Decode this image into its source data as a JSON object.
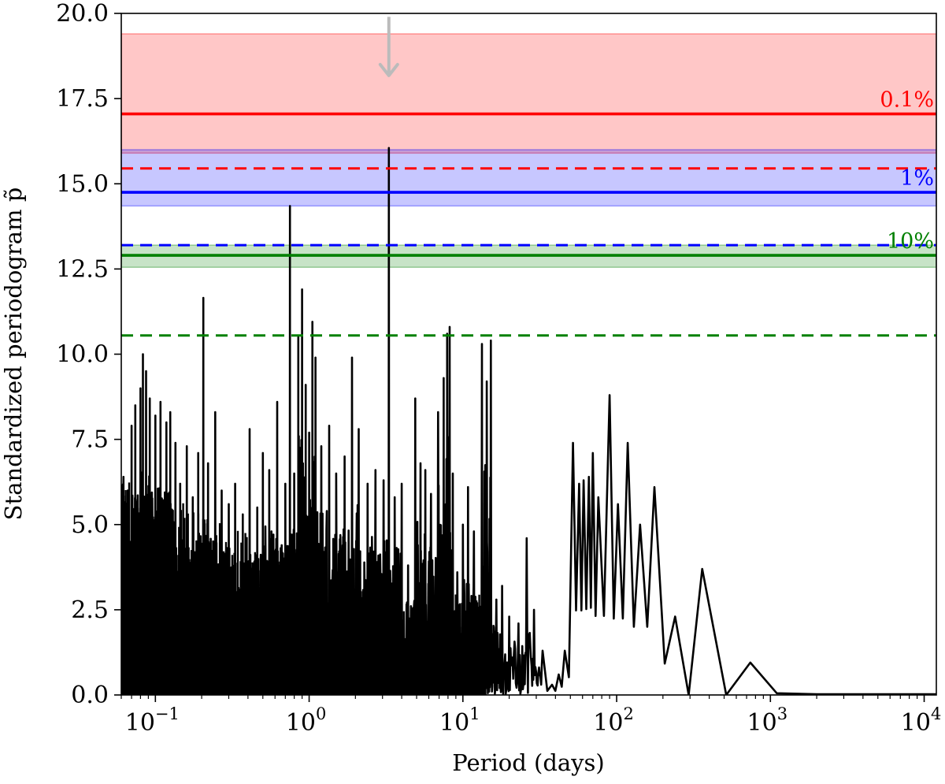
{
  "chart_data": {
    "type": "line",
    "xlabel": "Period (days)",
    "ylabel": "Standardized periodogram p̃",
    "xscale": "log",
    "xlim": [
      0.06,
      12000
    ],
    "ylim": [
      0.0,
      20.0
    ],
    "grid": false,
    "y_ticks": [
      "0.0",
      "2.5",
      "5.0",
      "7.5",
      "10.0",
      "12.5",
      "15.0",
      "17.5",
      "20.0"
    ],
    "x_ticks": [
      {
        "base": "10",
        "exp": "−1",
        "value": 0.1
      },
      {
        "base": "10",
        "exp": "0",
        "value": 1
      },
      {
        "base": "10",
        "exp": "1",
        "value": 10
      },
      {
        "base": "10",
        "exp": "2",
        "value": 100
      },
      {
        "base": "10",
        "exp": "3",
        "value": 1000
      },
      {
        "base": "10",
        "exp": "4",
        "value": 10000
      }
    ],
    "bands": [
      {
        "color": "#ff0000",
        "opacity": 0.22,
        "y": [
          15.9,
          19.4
        ]
      },
      {
        "color": "#0000ff",
        "opacity": 0.22,
        "y": [
          14.35,
          16.0
        ]
      },
      {
        "color": "#008000",
        "opacity": 0.22,
        "y": [
          12.55,
          13.2
        ]
      }
    ],
    "thresholds": [
      {
        "label": "0.1%",
        "color": "#ff0000",
        "solid": 17.05,
        "dashed": 15.45
      },
      {
        "label": "1%",
        "color": "#0000ff",
        "solid": 14.75,
        "dashed": 13.2
      },
      {
        "label": "10%",
        "color": "#008000",
        "solid": 12.9,
        "dashed": 10.55
      }
    ],
    "arrow": {
      "x": 3.3,
      "y_from": 19.9,
      "y_to": 18.2,
      "color": "#bbbbbb"
    },
    "series": [
      {
        "color": "#000000",
        "peaks": [
          [
            0.062,
            6.4
          ],
          [
            0.066,
            6.0
          ],
          [
            0.07,
            7.9
          ],
          [
            0.074,
            8.5
          ],
          [
            0.08,
            9.0
          ],
          [
            0.083,
            10.0
          ],
          [
            0.087,
            9.5
          ],
          [
            0.092,
            8.7
          ],
          [
            0.1,
            8.2
          ],
          [
            0.108,
            8.6
          ],
          [
            0.118,
            8.0
          ],
          [
            0.125,
            8.3
          ],
          [
            0.135,
            7.4
          ],
          [
            0.145,
            6.2
          ],
          [
            0.16,
            7.3
          ],
          [
            0.175,
            5.8
          ],
          [
            0.19,
            7.1
          ],
          [
            0.205,
            11.65
          ],
          [
            0.22,
            6.8
          ],
          [
            0.245,
            8.3
          ],
          [
            0.27,
            6.0
          ],
          [
            0.3,
            5.6
          ],
          [
            0.33,
            6.2
          ],
          [
            0.37,
            5.3
          ],
          [
            0.41,
            7.8
          ],
          [
            0.46,
            5.5
          ],
          [
            0.5,
            7.1
          ],
          [
            0.55,
            6.6
          ],
          [
            0.62,
            8.6
          ],
          [
            0.7,
            6.2
          ],
          [
            0.75,
            14.35
          ],
          [
            0.8,
            6.5
          ],
          [
            0.85,
            10.5
          ],
          [
            0.9,
            11.9
          ],
          [
            0.95,
            9.1
          ],
          [
            1.0,
            7.7
          ],
          [
            1.05,
            10.95
          ],
          [
            1.1,
            9.9
          ],
          [
            1.2,
            7.3
          ],
          [
            1.35,
            7.9
          ],
          [
            1.5,
            6.5
          ],
          [
            1.7,
            7.0
          ],
          [
            1.9,
            9.9
          ],
          [
            2.1,
            7.8
          ],
          [
            2.4,
            6.2
          ],
          [
            2.7,
            6.6
          ],
          [
            3.05,
            6.3
          ],
          [
            3.3,
            16.05
          ],
          [
            3.6,
            5.8
          ],
          [
            4.0,
            6.2
          ],
          [
            4.4,
            3.8
          ],
          [
            4.9,
            8.7
          ],
          [
            5.3,
            6.8
          ],
          [
            5.7,
            6.6
          ],
          [
            6.2,
            5.9
          ],
          [
            6.9,
            8.3
          ],
          [
            7.5,
            9.3
          ],
          [
            7.9,
            10.6
          ],
          [
            8.2,
            10.8
          ],
          [
            8.6,
            6.5
          ],
          [
            9.2,
            3.6
          ],
          [
            10.0,
            5.0
          ],
          [
            10.8,
            6.1
          ],
          [
            11.8,
            4.8
          ],
          [
            13.3,
            10.3
          ],
          [
            14.3,
            9.2
          ],
          [
            15.2,
            10.4
          ],
          [
            16.5,
            2.8
          ],
          [
            18.0,
            3.2
          ],
          [
            20.0,
            2.3
          ],
          [
            23.0,
            2.1
          ],
          [
            26.0,
            4.6
          ],
          [
            29.0,
            2.5
          ],
          [
            33.0,
            1.3
          ],
          [
            38.0,
            0.3
          ],
          [
            42.0,
            0.6
          ],
          [
            46.0,
            1.3
          ],
          [
            52.0,
            7.4
          ],
          [
            57.0,
            6.2
          ],
          [
            61.0,
            6.3
          ],
          [
            66.0,
            6.4
          ],
          [
            70.0,
            7.1
          ],
          [
            76.0,
            5.8
          ],
          [
            90.0,
            8.8
          ],
          [
            102.0,
            5.6
          ],
          [
            118.0,
            7.4
          ],
          [
            142.0,
            5.0
          ],
          [
            176.0,
            6.1
          ],
          [
            240.0,
            2.3
          ],
          [
            360.0,
            3.7
          ],
          [
            740.0,
            0.95
          ]
        ]
      }
    ]
  }
}
